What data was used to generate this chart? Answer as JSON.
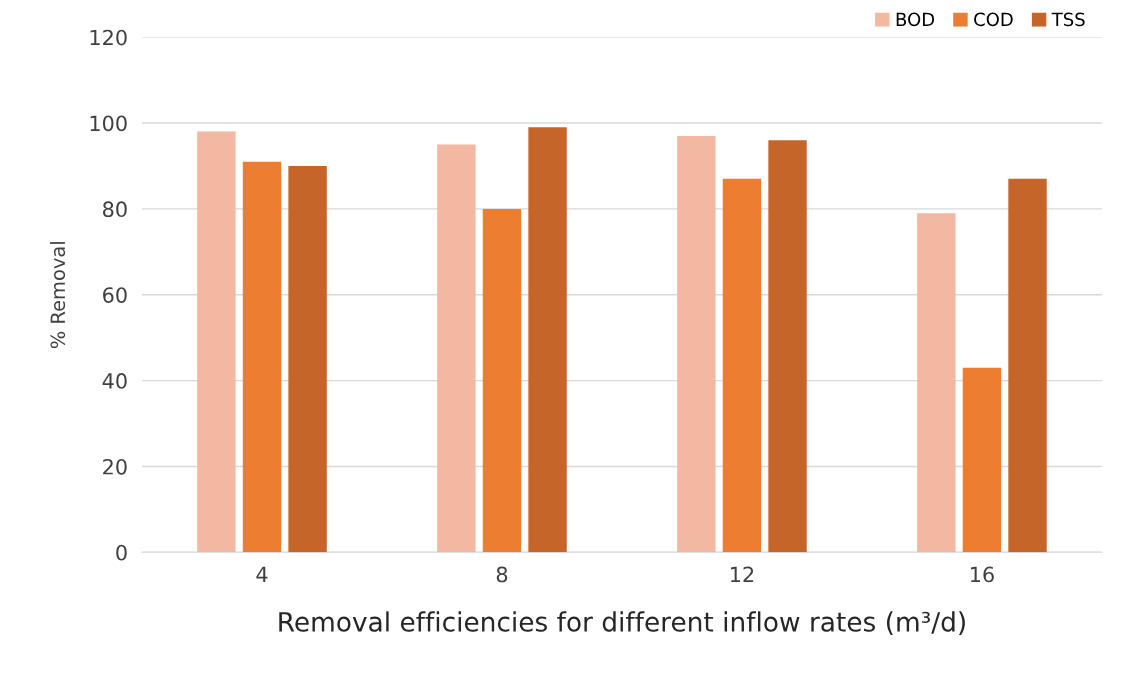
{
  "chart_data": {
    "type": "bar",
    "xlabel": "Removal efficiencies for different inflow rates (m³/d)",
    "ylabel": "% Removal",
    "categories": [
      "4",
      "8",
      "12",
      "16"
    ],
    "series": [
      {
        "name": "BOD",
        "color": "#f2b8a2",
        "values": [
          98,
          95,
          97,
          79
        ]
      },
      {
        "name": "COD",
        "color": "#ed7d31",
        "values": [
          91,
          80,
          87,
          43
        ]
      },
      {
        "name": "TSS",
        "color": "#c5652a",
        "values": [
          90,
          99,
          96,
          87
        ]
      }
    ],
    "ylim": [
      0,
      120
    ],
    "yticks": [
      0,
      20,
      40,
      60,
      80,
      100,
      120
    ],
    "grid": "y",
    "legend": "top right"
  }
}
